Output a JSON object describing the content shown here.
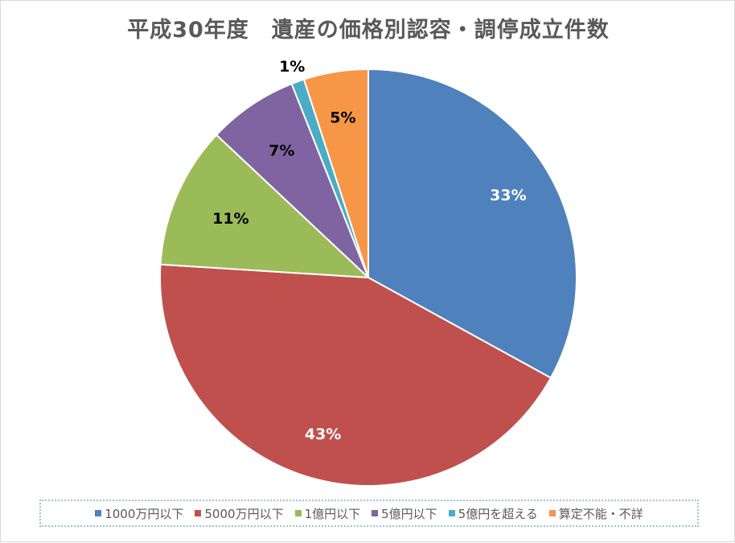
{
  "chart_data": {
    "type": "pie",
    "title": "平成30年度　遺産の価格別認容・調停成立件数",
    "categories": [
      "1000万円以下",
      "5000万円以下",
      "1億円以下",
      "5億円以下",
      "5億円を超える",
      "算定不能・不詳"
    ],
    "values": [
      33,
      43,
      11,
      7,
      1,
      5
    ],
    "labels": [
      "33%",
      "43%",
      "11%",
      "7%",
      "1%",
      "5%"
    ],
    "colors": [
      "#4f81bd",
      "#c0504d",
      "#9bbb59",
      "#8064a2",
      "#4bacc6",
      "#f79646"
    ],
    "label_colors": [
      "#ffffff",
      "#ffffff",
      "#000000",
      "#000000",
      "#000000",
      "#000000"
    ],
    "legend_position": "bottom",
    "start_angle": "12 o'clock",
    "direction": "clockwise"
  }
}
